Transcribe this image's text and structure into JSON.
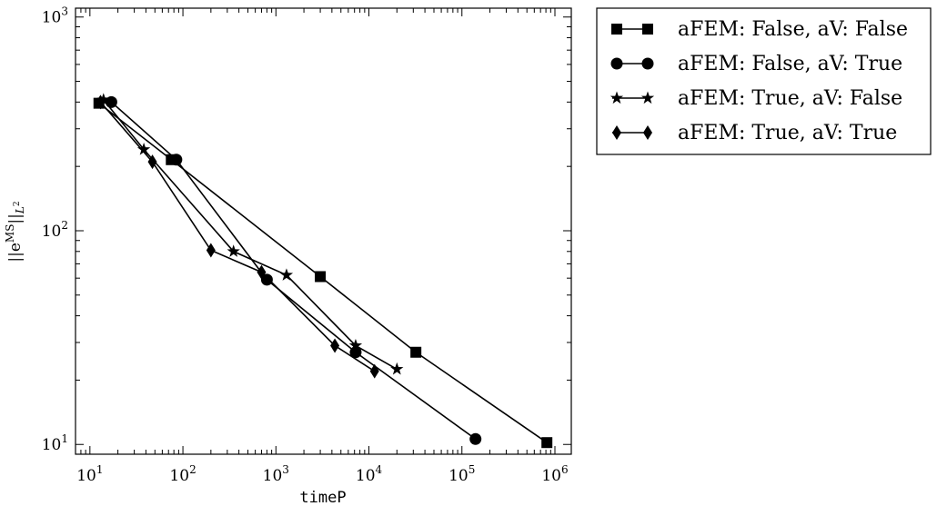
{
  "chart_data": {
    "type": "line",
    "xlabel": "timeP",
    "ylabel_base": "||e",
    "ylabel_sup": "MS",
    "ylabel_close": "||",
    "ylabel_sub": "L",
    "ylabel_sub_sup": "2",
    "xscale": "log",
    "yscale": "log",
    "xlim": [
      7,
      1500000
    ],
    "ylim": [
      9,
      1100
    ],
    "grid": false,
    "legend_position": "outside-top-right",
    "x_ticks": [
      {
        "value": 10,
        "base": "10",
        "exp": "1"
      },
      {
        "value": 100,
        "base": "10",
        "exp": "2"
      },
      {
        "value": 1000,
        "base": "10",
        "exp": "3"
      },
      {
        "value": 10000,
        "base": "10",
        "exp": "4"
      },
      {
        "value": 100000,
        "base": "10",
        "exp": "5"
      },
      {
        "value": 1000000,
        "base": "10",
        "exp": "6"
      }
    ],
    "y_ticks": [
      {
        "value": 10,
        "base": "10",
        "exp": "1"
      },
      {
        "value": 100,
        "base": "10",
        "exp": "2"
      },
      {
        "value": 1000,
        "base": "10",
        "exp": "3"
      }
    ],
    "series": [
      {
        "name": "aFEM: False, aV: False",
        "marker": "square",
        "x": [
          12.5,
          75,
          3000,
          32000,
          820000
        ],
        "y": [
          395,
          215,
          61,
          27,
          10.2
        ]
      },
      {
        "name": "aFEM: False, aV: True",
        "marker": "circle",
        "x": [
          17,
          85,
          800,
          7200,
          140000
        ],
        "y": [
          400,
          215,
          59,
          27,
          10.6
        ]
      },
      {
        "name": "aFEM: True, aV: False",
        "marker": "star",
        "x": [
          14,
          38,
          350,
          1300,
          7200,
          20000
        ],
        "y": [
          410,
          240,
          80,
          62,
          29,
          22.5
        ]
      },
      {
        "name": "aFEM: True, aV: True",
        "marker": "diamond",
        "x": [
          13,
          47,
          200,
          700,
          4300,
          11500
        ],
        "y": [
          400,
          210,
          81,
          64,
          29,
          22
        ]
      }
    ]
  }
}
